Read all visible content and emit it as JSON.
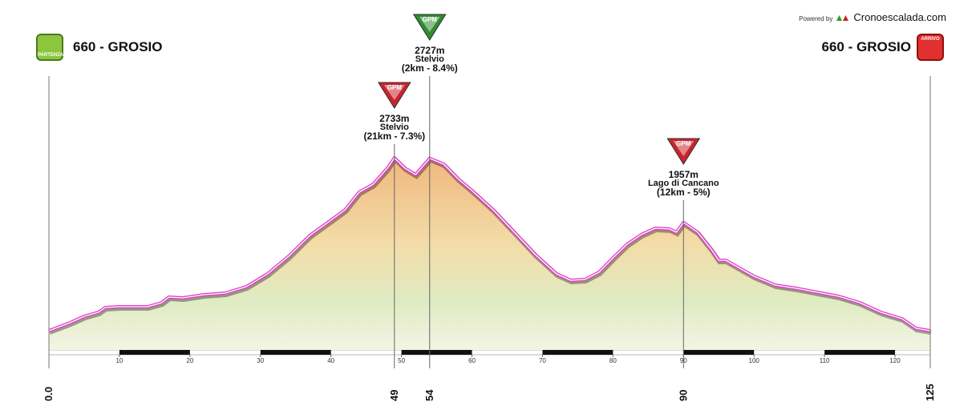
{
  "chart_data": {
    "type": "area",
    "powered_by": "Powered by",
    "brand": "Cronoescalada.com",
    "start": {
      "label": "660 - GROSIO",
      "badge": "PARTENZA"
    },
    "finish": {
      "label": "660 - GROSIO",
      "badge": "ARRIVO"
    },
    "x": [
      0,
      3,
      5,
      7,
      8,
      10,
      14,
      16,
      17,
      19,
      22,
      25,
      28,
      31,
      34,
      37,
      40,
      42,
      44,
      46,
      48,
      49,
      50.5,
      52,
      53,
      54,
      56,
      58,
      60,
      63,
      66,
      69,
      72,
      74,
      76,
      78,
      80,
      82,
      84,
      86,
      88,
      89,
      90,
      92,
      94,
      95,
      96,
      98,
      100,
      103,
      106,
      109,
      112,
      115,
      118,
      121,
      123,
      125
    ],
    "values": [
      660,
      756,
      833,
      881,
      939,
      948,
      948,
      996,
      1064,
      1054,
      1092,
      1112,
      1188,
      1342,
      1553,
      1803,
      1985,
      2110,
      2321,
      2417,
      2609,
      2733,
      2609,
      2532,
      2628,
      2727,
      2657,
      2484,
      2340,
      2110,
      1841,
      1572,
      1342,
      1265,
      1275,
      1361,
      1534,
      1697,
      1812,
      1889,
      1880,
      1841,
      1957,
      1841,
      1630,
      1505,
      1505,
      1409,
      1313,
      1208,
      1169,
      1121,
      1073,
      996,
      881,
      804,
      689,
      660
    ],
    "color": "#e040c8",
    "xlim": [
      0,
      125
    ],
    "ylim": [
      430,
      3713
    ],
    "xticks": [
      10,
      20,
      30,
      40,
      50,
      60,
      70,
      80,
      90,
      100,
      110,
      120
    ],
    "xmarks": [
      {
        "value": 0,
        "label": "0.0"
      },
      49,
      54,
      90,
      125
    ],
    "climbs": [
      {
        "x": 49,
        "value": 2733,
        "value_label": "2733m",
        "name": "Stelvio",
        "detail": "(21km - 7.3%)",
        "badge": "GPM",
        "color": "#c8242c"
      },
      {
        "x": 54,
        "value": 2727,
        "value_label": "2727m",
        "name": "Stelvio",
        "detail": "(2km - 8.4%)",
        "badge": "GPM",
        "color": "#2e8b2e"
      },
      {
        "x": 90,
        "value": 1957,
        "value_label": "1957m",
        "name": "Lago di Cancano",
        "detail": "(12km - 5%)",
        "badge": "GPM",
        "color": "#c8242c"
      }
    ]
  }
}
